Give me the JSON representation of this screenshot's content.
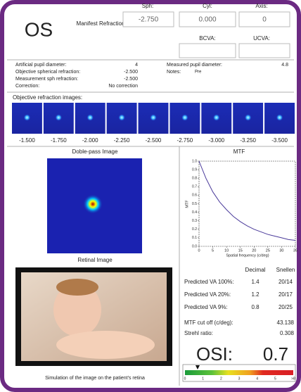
{
  "header": {
    "eye": "OS",
    "manifest_label": "Manifest Refraction",
    "sph_label": "Sph:",
    "cyl_label": "Cyl:",
    "axis_label": "Axis:",
    "sph": "-2.750",
    "cyl": "0.000",
    "axis": "0",
    "bcva_label": "BCVA:",
    "ucva_label": "UCVA:"
  },
  "info": {
    "left": [
      [
        "Artificial pupil diameter:",
        "4"
      ],
      [
        "Objective spherical refraction:",
        "-2.500"
      ],
      [
        "Measurement sph refraction:",
        "-2.500"
      ],
      [
        "Correction:",
        "No correction"
      ]
    ],
    "right": [
      [
        "Measured pupil diameter:",
        "4.8"
      ],
      [
        "Notes:",
        "Pre"
      ]
    ]
  },
  "images": {
    "title": "Objective refraction images:",
    "labels": [
      "-1.500",
      "-1.750",
      "-2.000",
      "-2.250",
      "-2.500",
      "-2.750",
      "-3.000",
      "-3.250",
      "-3.500"
    ],
    "highlight": 4
  },
  "double_pass": {
    "title": "Doble-pass Image"
  },
  "retinal": {
    "title": "Retinal Image",
    "caption": "Simulation of the image on the patient's retina"
  },
  "chart_data": {
    "type": "line",
    "title": "MTF",
    "x_label": "Spatial frequency (c/deg)",
    "y_label": "MTF",
    "color": "#4a3a9a",
    "x": [
      0,
      2.5,
      5,
      7.5,
      10,
      12.5,
      15,
      17.5,
      20,
      22.5,
      25,
      27.5,
      30,
      32.5,
      35
    ],
    "values": [
      1.0,
      0.8,
      0.64,
      0.52,
      0.43,
      0.35,
      0.29,
      0.24,
      0.2,
      0.17,
      0.14,
      0.12,
      0.1,
      0.08,
      0.07
    ],
    "xlim": [
      0,
      35
    ],
    "xticks": [
      0,
      5,
      10,
      15,
      20,
      25,
      30,
      35
    ],
    "ylim": [
      0,
      1
    ],
    "yticks": [
      {
        "value": 0,
        "label": "0.0"
      },
      0.1,
      0.2,
      0.3,
      0.4,
      0.5,
      0.6,
      0.7,
      0.8,
      0.9,
      {
        "value": 1,
        "label": "1.0"
      }
    ]
  },
  "va": {
    "headers": [
      "Decimal",
      "Snellen"
    ],
    "rows": [
      [
        "Predicted VA 100%:",
        "1.4",
        "20/14"
      ],
      [
        "Predicted VA 20%:",
        "1.2",
        "20/17"
      ],
      [
        "Predicted VA 9%:",
        "0.8",
        "20/25"
      ]
    ],
    "cutoff_label": "MTF cut off (c/deg):",
    "cutoff": "43.138",
    "strehl_label": "Strehl ratio:",
    "strehl": "0.308"
  },
  "osi": {
    "label": "OSI:",
    "value": 0.7,
    "scale": [
      "0",
      "1",
      "2",
      "3",
      "4",
      "5",
      ">8"
    ]
  }
}
